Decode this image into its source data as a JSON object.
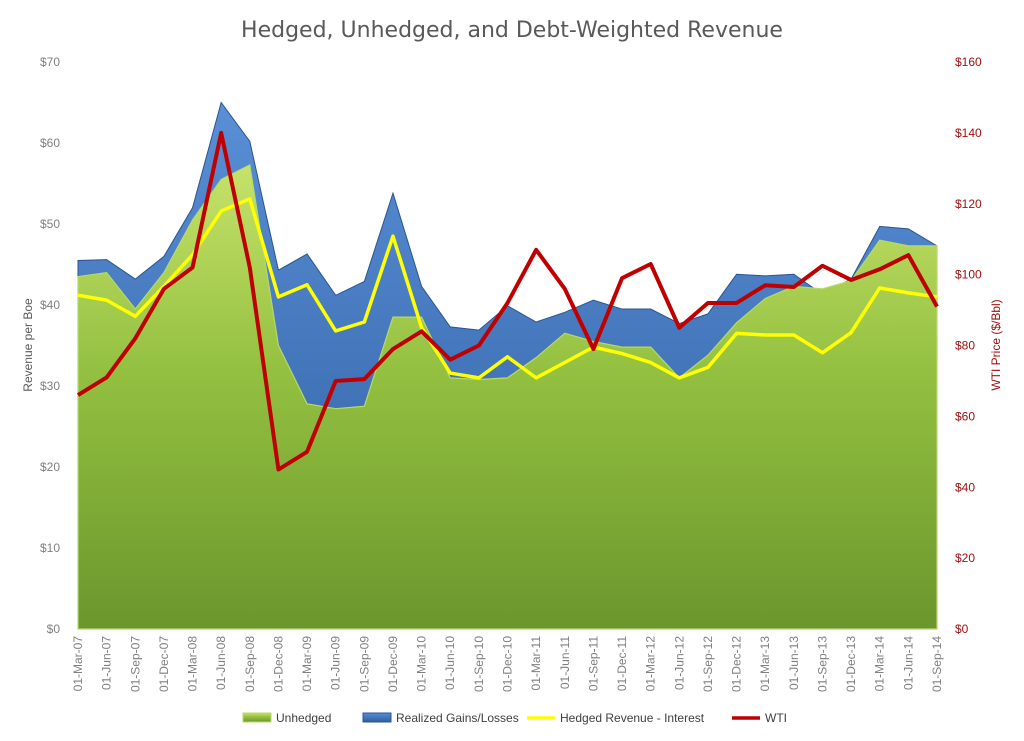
{
  "chart_data": {
    "type": "area",
    "title": "Hedged, Unhedged, and Debt-Weighted Revenue",
    "xlabel": "",
    "ylabel": "Revenue per Boe",
    "y2label": "WTI Price ($/Bbl)",
    "ylim": [
      0,
      70
    ],
    "y2lim": [
      0,
      160
    ],
    "yticks": [
      "$0",
      "$10",
      "$20",
      "$30",
      "$40",
      "$50",
      "$60",
      "$70"
    ],
    "y2ticks": [
      "$0",
      "$20",
      "$40",
      "$60",
      "$80",
      "$100",
      "$120",
      "$140",
      "$160"
    ],
    "categories": [
      "01-Mar-07",
      "01-Jun-07",
      "01-Sep-07",
      "01-Dec-07",
      "01-Mar-08",
      "01-Jun-08",
      "01-Sep-08",
      "01-Dec-08",
      "01-Mar-09",
      "01-Jun-09",
      "01-Sep-09",
      "01-Dec-09",
      "01-Mar-10",
      "01-Jun-10",
      "01-Sep-10",
      "01-Dec-10",
      "01-Mar-11",
      "01-Jun-11",
      "01-Sep-11",
      "01-Dec-11",
      "01-Mar-12",
      "01-Jun-12",
      "01-Sep-12",
      "01-Dec-12",
      "01-Mar-13",
      "01-Jun-13",
      "01-Sep-13",
      "01-Dec-13",
      "01-Mar-14",
      "01-Jun-14",
      "01-Sep-14"
    ],
    "series": [
      {
        "name": "Unhedged",
        "type": "area",
        "axis": "left",
        "color": "#8db83a",
        "values": [
          43.5,
          44.0,
          39.5,
          44.0,
          50.5,
          55.5,
          57.3,
          35.0,
          27.8,
          27.2,
          27.5,
          38.5,
          38.5,
          31.0,
          30.8,
          31.0,
          33.5,
          36.5,
          35.5,
          34.8,
          34.8,
          31.0,
          33.8,
          37.8,
          40.8,
          42.3,
          42.0,
          43.0,
          48.0,
          47.3,
          47.3
        ]
      },
      {
        "name": "Realized Gains/Losses",
        "type": "area",
        "axis": "left",
        "color": "#3a6fb5",
        "values": [
          45.5,
          45.6,
          43.2,
          46.0,
          52.0,
          65.0,
          60.2,
          44.3,
          46.3,
          41.2,
          42.9,
          53.8,
          42.3,
          37.3,
          36.9,
          39.9,
          37.9,
          39.1,
          40.6,
          39.5,
          39.5,
          37.7,
          38.9,
          43.8,
          43.6,
          43.8,
          41.3,
          43.2,
          49.7,
          49.4,
          47.3
        ]
      },
      {
        "name": "Hedged Revenue - Interest",
        "type": "line",
        "axis": "left",
        "color": "#ffff00",
        "values": [
          41.2,
          40.6,
          38.6,
          42.3,
          46.2,
          51.6,
          53.1,
          41.0,
          42.5,
          36.8,
          37.9,
          48.5,
          37.2,
          31.6,
          31.0,
          33.6,
          31.0,
          32.9,
          34.8,
          34.0,
          32.9,
          31.0,
          32.3,
          36.5,
          36.3,
          36.3,
          34.1,
          36.6,
          42.1,
          41.5,
          41.0
        ]
      },
      {
        "name": "WTI",
        "type": "line",
        "axis": "right",
        "color": "#c00000",
        "values": [
          66,
          71,
          82,
          96,
          102,
          140,
          102,
          45,
          50,
          70,
          70.5,
          79,
          84,
          76,
          80,
          92,
          107,
          96,
          79,
          99,
          103,
          85,
          92,
          92,
          97,
          96.5,
          102.5,
          98.5,
          101.5,
          105.5,
          91
        ]
      }
    ],
    "legend": "bottom"
  }
}
